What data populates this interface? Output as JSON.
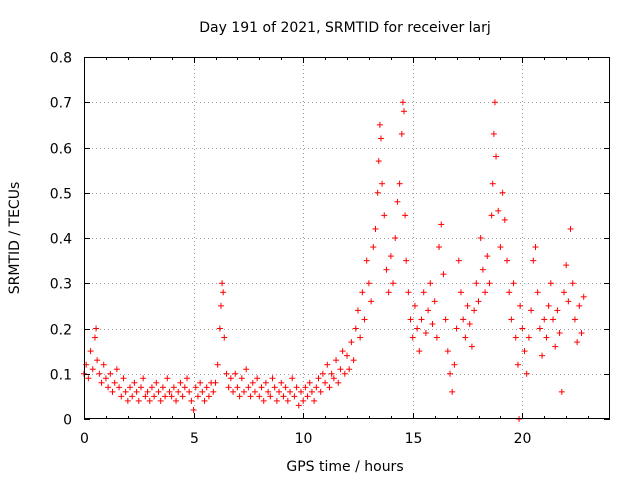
{
  "chart_data": {
    "type": "scatter",
    "title": "Day 191 of 2021, SRMTID for receiver larj",
    "xlabel": "GPS time / hours",
    "ylabel": "SRMTID / TECUs",
    "xlim": [
      0,
      24
    ],
    "ylim": [
      0,
      0.8
    ],
    "x_ticks": [
      0,
      5,
      10,
      15,
      20
    ],
    "y_ticks": [
      0,
      0.1,
      0.2,
      0.3,
      0.4,
      0.5,
      0.6,
      0.7,
      0.8
    ],
    "x_tick_labels": [
      "0",
      "5",
      "10",
      "15",
      "20"
    ],
    "y_tick_labels": [
      "0",
      "0.1",
      "0.2",
      "0.3",
      "0.4",
      "0.5",
      "0.6",
      "0.7",
      "0.8"
    ],
    "grid": true,
    "marker": "+",
    "series": [
      {
        "name": "SRMTID",
        "color": "#ff0000",
        "points": [
          [
            0.0,
            0.1
          ],
          [
            0.1,
            0.12
          ],
          [
            0.2,
            0.09
          ],
          [
            0.3,
            0.15
          ],
          [
            0.4,
            0.11
          ],
          [
            0.5,
            0.18
          ],
          [
            0.55,
            0.2
          ],
          [
            0.6,
            0.13
          ],
          [
            0.7,
            0.1
          ],
          [
            0.8,
            0.08
          ],
          [
            0.9,
            0.12
          ],
          [
            1.0,
            0.09
          ],
          [
            1.1,
            0.07
          ],
          [
            1.2,
            0.1
          ],
          [
            1.3,
            0.06
          ],
          [
            1.4,
            0.08
          ],
          [
            1.5,
            0.11
          ],
          [
            1.6,
            0.07
          ],
          [
            1.7,
            0.05
          ],
          [
            1.8,
            0.09
          ],
          [
            1.9,
            0.06
          ],
          [
            2.0,
            0.04
          ],
          [
            2.1,
            0.07
          ],
          [
            2.2,
            0.05
          ],
          [
            2.3,
            0.08
          ],
          [
            2.4,
            0.06
          ],
          [
            2.5,
            0.04
          ],
          [
            2.6,
            0.07
          ],
          [
            2.7,
            0.09
          ],
          [
            2.8,
            0.05
          ],
          [
            2.9,
            0.06
          ],
          [
            3.0,
            0.04
          ],
          [
            3.1,
            0.07
          ],
          [
            3.2,
            0.05
          ],
          [
            3.3,
            0.08
          ],
          [
            3.4,
            0.06
          ],
          [
            3.5,
            0.04
          ],
          [
            3.6,
            0.07
          ],
          [
            3.7,
            0.05
          ],
          [
            3.8,
            0.09
          ],
          [
            3.9,
            0.06
          ],
          [
            4.0,
            0.05
          ],
          [
            4.1,
            0.07
          ],
          [
            4.2,
            0.04
          ],
          [
            4.3,
            0.06
          ],
          [
            4.4,
            0.08
          ],
          [
            4.5,
            0.05
          ],
          [
            4.6,
            0.07
          ],
          [
            4.7,
            0.09
          ],
          [
            4.8,
            0.06
          ],
          [
            4.9,
            0.04
          ],
          [
            5.0,
            0.02
          ],
          [
            5.1,
            0.07
          ],
          [
            5.2,
            0.05
          ],
          [
            5.3,
            0.08
          ],
          [
            5.4,
            0.06
          ],
          [
            5.5,
            0.04
          ],
          [
            5.6,
            0.07
          ],
          [
            5.7,
            0.05
          ],
          [
            5.8,
            0.08
          ],
          [
            5.9,
            0.06
          ],
          [
            6.0,
            0.08
          ],
          [
            6.1,
            0.12
          ],
          [
            6.2,
            0.2
          ],
          [
            6.25,
            0.25
          ],
          [
            6.3,
            0.3
          ],
          [
            6.35,
            0.28
          ],
          [
            6.4,
            0.18
          ],
          [
            6.5,
            0.1
          ],
          [
            6.6,
            0.07
          ],
          [
            6.7,
            0.09
          ],
          [
            6.8,
            0.06
          ],
          [
            6.9,
            0.1
          ],
          [
            7.0,
            0.07
          ],
          [
            7.1,
            0.05
          ],
          [
            7.2,
            0.09
          ],
          [
            7.3,
            0.06
          ],
          [
            7.4,
            0.11
          ],
          [
            7.5,
            0.07
          ],
          [
            7.6,
            0.05
          ],
          [
            7.7,
            0.08
          ],
          [
            7.8,
            0.06
          ],
          [
            7.9,
            0.09
          ],
          [
            8.0,
            0.05
          ],
          [
            8.1,
            0.07
          ],
          [
            8.2,
            0.04
          ],
          [
            8.3,
            0.08
          ],
          [
            8.4,
            0.06
          ],
          [
            8.5,
            0.05
          ],
          [
            8.6,
            0.09
          ],
          [
            8.7,
            0.07
          ],
          [
            8.8,
            0.04
          ],
          [
            8.9,
            0.06
          ],
          [
            9.0,
            0.08
          ],
          [
            9.1,
            0.05
          ],
          [
            9.2,
            0.07
          ],
          [
            9.3,
            0.04
          ],
          [
            9.4,
            0.06
          ],
          [
            9.5,
            0.09
          ],
          [
            9.6,
            0.05
          ],
          [
            9.7,
            0.07
          ],
          [
            9.8,
            0.03
          ],
          [
            9.9,
            0.06
          ],
          [
            10.0,
            0.04
          ],
          [
            10.1,
            0.07
          ],
          [
            10.2,
            0.05
          ],
          [
            10.3,
            0.08
          ],
          [
            10.4,
            0.06
          ],
          [
            10.5,
            0.04
          ],
          [
            10.6,
            0.07
          ],
          [
            10.7,
            0.09
          ],
          [
            10.8,
            0.06
          ],
          [
            10.9,
            0.1
          ],
          [
            11.0,
            0.08
          ],
          [
            11.1,
            0.12
          ],
          [
            11.2,
            0.07
          ],
          [
            11.3,
            0.1
          ],
          [
            11.4,
            0.09
          ],
          [
            11.5,
            0.13
          ],
          [
            11.6,
            0.08
          ],
          [
            11.7,
            0.11
          ],
          [
            11.8,
            0.15
          ],
          [
            11.9,
            0.1
          ],
          [
            12.0,
            0.14
          ],
          [
            12.1,
            0.11
          ],
          [
            12.2,
            0.17
          ],
          [
            12.3,
            0.13
          ],
          [
            12.4,
            0.2
          ],
          [
            12.5,
            0.24
          ],
          [
            12.6,
            0.18
          ],
          [
            12.7,
            0.28
          ],
          [
            12.8,
            0.22
          ],
          [
            12.9,
            0.35
          ],
          [
            13.0,
            0.3
          ],
          [
            13.1,
            0.26
          ],
          [
            13.2,
            0.38
          ],
          [
            13.3,
            0.42
          ],
          [
            13.4,
            0.5
          ],
          [
            13.45,
            0.57
          ],
          [
            13.5,
            0.65
          ],
          [
            13.55,
            0.62
          ],
          [
            13.6,
            0.52
          ],
          [
            13.7,
            0.45
          ],
          [
            13.8,
            0.33
          ],
          [
            13.9,
            0.28
          ],
          [
            14.0,
            0.36
          ],
          [
            14.1,
            0.3
          ],
          [
            14.2,
            0.4
          ],
          [
            14.3,
            0.48
          ],
          [
            14.4,
            0.52
          ],
          [
            14.5,
            0.63
          ],
          [
            14.55,
            0.7
          ],
          [
            14.6,
            0.68
          ],
          [
            14.65,
            0.45
          ],
          [
            14.7,
            0.35
          ],
          [
            14.8,
            0.28
          ],
          [
            14.9,
            0.22
          ],
          [
            15.0,
            0.18
          ],
          [
            15.1,
            0.25
          ],
          [
            15.2,
            0.2
          ],
          [
            15.3,
            0.15
          ],
          [
            15.4,
            0.22
          ],
          [
            15.5,
            0.28
          ],
          [
            15.6,
            0.19
          ],
          [
            15.7,
            0.24
          ],
          [
            15.8,
            0.3
          ],
          [
            15.9,
            0.21
          ],
          [
            16.0,
            0.26
          ],
          [
            16.1,
            0.18
          ],
          [
            16.2,
            0.38
          ],
          [
            16.3,
            0.43
          ],
          [
            16.4,
            0.32
          ],
          [
            16.5,
            0.22
          ],
          [
            16.6,
            0.15
          ],
          [
            16.7,
            0.1
          ],
          [
            16.8,
            0.06
          ],
          [
            16.9,
            0.12
          ],
          [
            17.0,
            0.2
          ],
          [
            17.1,
            0.35
          ],
          [
            17.2,
            0.28
          ],
          [
            17.3,
            0.22
          ],
          [
            17.4,
            0.18
          ],
          [
            17.5,
            0.25
          ],
          [
            17.6,
            0.21
          ],
          [
            17.7,
            0.16
          ],
          [
            17.8,
            0.24
          ],
          [
            17.9,
            0.3
          ],
          [
            18.0,
            0.26
          ],
          [
            18.1,
            0.4
          ],
          [
            18.2,
            0.33
          ],
          [
            18.3,
            0.28
          ],
          [
            18.4,
            0.36
          ],
          [
            18.5,
            0.3
          ],
          [
            18.6,
            0.45
          ],
          [
            18.65,
            0.52
          ],
          [
            18.7,
            0.63
          ],
          [
            18.75,
            0.7
          ],
          [
            18.8,
            0.58
          ],
          [
            18.9,
            0.46
          ],
          [
            19.0,
            0.38
          ],
          [
            19.1,
            0.5
          ],
          [
            19.2,
            0.44
          ],
          [
            19.3,
            0.35
          ],
          [
            19.4,
            0.28
          ],
          [
            19.5,
            0.22
          ],
          [
            19.6,
            0.3
          ],
          [
            19.7,
            0.18
          ],
          [
            19.8,
            0.12
          ],
          [
            19.85,
            0.0
          ],
          [
            19.9,
            0.25
          ],
          [
            20.0,
            0.2
          ],
          [
            20.1,
            0.15
          ],
          [
            20.2,
            0.1
          ],
          [
            20.3,
            0.18
          ],
          [
            20.4,
            0.24
          ],
          [
            20.5,
            0.35
          ],
          [
            20.6,
            0.38
          ],
          [
            20.7,
            0.28
          ],
          [
            20.8,
            0.2
          ],
          [
            20.9,
            0.14
          ],
          [
            21.0,
            0.22
          ],
          [
            21.1,
            0.18
          ],
          [
            21.2,
            0.25
          ],
          [
            21.3,
            0.3
          ],
          [
            21.4,
            0.22
          ],
          [
            21.5,
            0.16
          ],
          [
            21.6,
            0.24
          ],
          [
            21.7,
            0.19
          ],
          [
            21.8,
            0.06
          ],
          [
            21.9,
            0.28
          ],
          [
            22.0,
            0.34
          ],
          [
            22.1,
            0.26
          ],
          [
            22.2,
            0.42
          ],
          [
            22.3,
            0.3
          ],
          [
            22.4,
            0.22
          ],
          [
            22.5,
            0.17
          ],
          [
            22.6,
            0.25
          ],
          [
            22.7,
            0.19
          ],
          [
            22.8,
            0.27
          ]
        ]
      }
    ]
  }
}
